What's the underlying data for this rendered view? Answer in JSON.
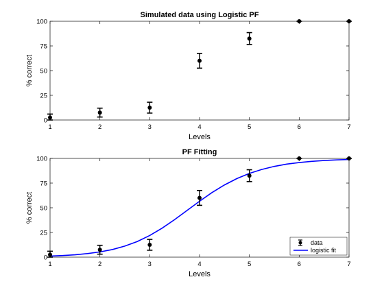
{
  "chart_data": [
    {
      "type": "scatter",
      "title": "Simulated data using Logistic PF",
      "xlabel": "Levels",
      "ylabel": "% correct",
      "xlim": [
        1,
        7
      ],
      "ylim": [
        0,
        100
      ],
      "x_ticks": [
        1,
        2,
        3,
        4,
        5,
        6,
        7
      ],
      "y_ticks": [
        0,
        25,
        50,
        75,
        100
      ],
      "grid": false,
      "series": [
        {
          "x": [
            1,
            2,
            3,
            4,
            5,
            6,
            7
          ],
          "y": [
            2.5,
            7.5,
            12.5,
            60,
            82.5,
            100,
            100
          ],
          "err": [
            3.5,
            4.5,
            5.5,
            7.5,
            6,
            0,
            0
          ],
          "color": "#000000"
        }
      ]
    },
    {
      "type": "scatter",
      "title": "PF Fitting",
      "xlabel": "Levels",
      "ylabel": "% correct",
      "xlim": [
        1,
        7
      ],
      "ylim": [
        0,
        100
      ],
      "x_ticks": [
        1,
        2,
        3,
        4,
        5,
        6,
        7
      ],
      "y_ticks": [
        0,
        25,
        50,
        75,
        100
      ],
      "grid": false,
      "legend": "bottom-right",
      "series": [
        {
          "name": "data",
          "kind": "errorbar",
          "x": [
            1,
            2,
            3,
            4,
            5,
            6,
            7
          ],
          "y": [
            2.5,
            7.5,
            12.5,
            60,
            82.5,
            100,
            100
          ],
          "err": [
            3.5,
            4.5,
            5.5,
            7.5,
            6,
            0,
            0
          ],
          "color": "#000000"
        },
        {
          "name": "logistic fit",
          "kind": "line",
          "x": [
            1,
            1.25,
            1.5,
            1.75,
            2,
            2.25,
            2.5,
            2.75,
            3,
            3.25,
            3.5,
            3.75,
            4,
            4.25,
            4.5,
            4.75,
            5,
            5.25,
            5.5,
            5.75,
            6,
            6.25,
            6.5,
            6.75,
            7
          ],
          "y": [
            1.1,
            1.6,
            2.4,
            3.6,
            5.3,
            7.7,
            11.2,
            15.8,
            21.9,
            29.4,
            38.0,
            47.3,
            56.6,
            65.4,
            73.1,
            79.6,
            84.8,
            88.8,
            91.9,
            94.2,
            95.8,
            97.0,
            97.9,
            98.5,
            98.9
          ],
          "color": "#0000ff"
        }
      ]
    }
  ]
}
